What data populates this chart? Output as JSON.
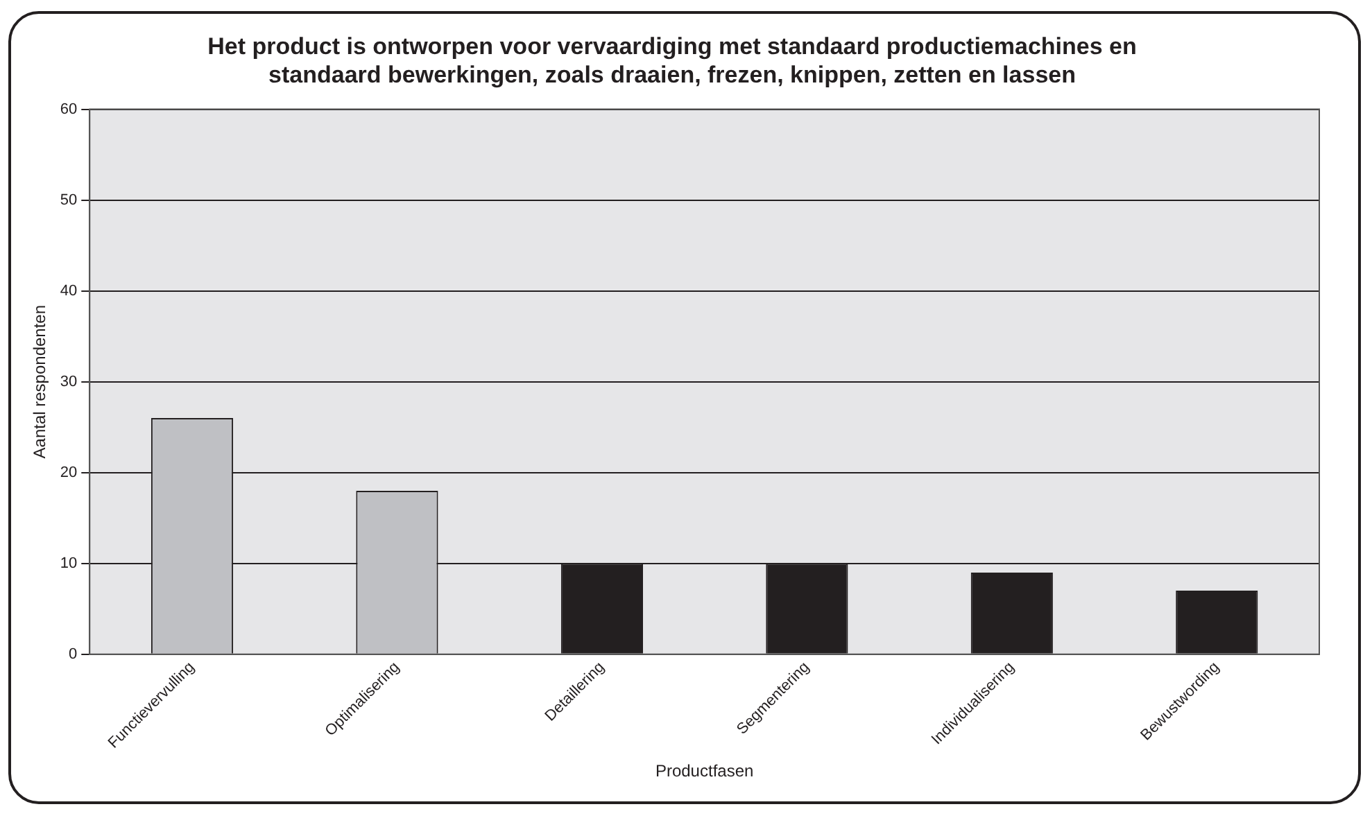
{
  "chart_data": {
    "type": "bar",
    "title": "Het product is ontworpen voor vervaardiging met standaard productiemachines en standaard bewerkingen, zoals draaien, frezen, knippen, zetten en lassen",
    "xlabel": "Productfasen",
    "ylabel": "Aantal respondenten",
    "categories": [
      "Functievervulling",
      "Optimalisering",
      "Detaillering",
      "Segmentering",
      "Individualisering",
      "Bewustwording"
    ],
    "values": [
      26,
      18,
      10,
      10,
      9,
      7
    ],
    "colors": [
      "#bfc0c4",
      "#bfc0c4",
      "#231f20",
      "#231f20",
      "#231f20",
      "#231f20"
    ],
    "ylim": [
      0,
      60
    ],
    "yticks": [
      0,
      10,
      20,
      30,
      40,
      50,
      60
    ],
    "grid": "y",
    "legend": false
  }
}
